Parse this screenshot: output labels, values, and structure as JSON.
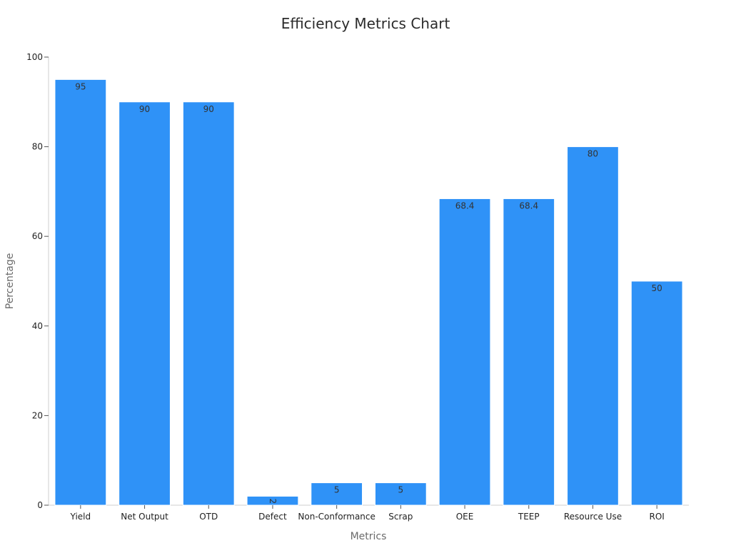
{
  "colors": {
    "bar": "#2f92f7",
    "axis": "#cfcfcf",
    "background": "#ffffff"
  },
  "chart_data": {
    "type": "bar",
    "title": "Efficiency Metrics Chart",
    "xlabel": "Metrics",
    "ylabel": "Percentage",
    "categories": [
      "Yield",
      "Net Output",
      "OTD",
      "Defect",
      "Non-Conformance",
      "Scrap",
      "OEE",
      "TEEP",
      "Resource Use",
      "ROI"
    ],
    "values": [
      95,
      90,
      90,
      2,
      5,
      5,
      68.4,
      68.4,
      80,
      50
    ],
    "data_labels": [
      "95",
      "90",
      "90",
      "2",
      "5",
      "5",
      "68.4",
      "68.4",
      "80",
      "50"
    ],
    "ylim": [
      0,
      100
    ],
    "yticks": [
      0,
      20,
      40,
      60,
      80,
      100
    ],
    "grid": false,
    "legend": "none"
  }
}
